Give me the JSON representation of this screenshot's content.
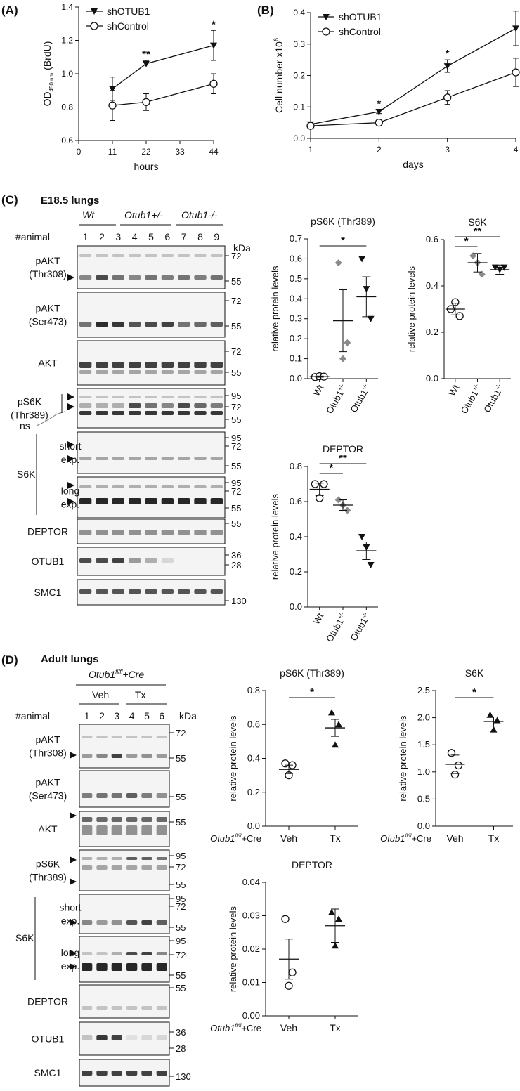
{
  "figure": {
    "panel_labels": [
      "(A)",
      "(B)",
      "(C)",
      "(D)"
    ],
    "C": {
      "title": "E18.5 lungs",
      "groups": [
        "Wt",
        "Otub1+/-",
        "Otub1-/-"
      ],
      "animal_label": "#animal",
      "animals": [
        "1",
        "2",
        "3",
        "4",
        "5",
        "6",
        "7",
        "8",
        "9"
      ],
      "kda": "kDa",
      "blots": [
        {
          "label": [
            "pAKT",
            "(Thr308)"
          ],
          "markers": [
            "72",
            "55"
          ]
        },
        {
          "label": [
            "pAKT",
            "(Ser473)"
          ],
          "markers": [
            "72",
            "55"
          ]
        },
        {
          "label": [
            "AKT"
          ],
          "markers": [
            "72",
            "55"
          ]
        },
        {
          "label": [
            "pS6K",
            "(Thr389)"
          ],
          "markers": [
            "95",
            "72",
            "55"
          ],
          "extra": "ns"
        },
        {
          "label": [
            "short",
            "exp."
          ],
          "markers": [
            "95",
            "72",
            "55"
          ]
        },
        {
          "label": [
            "long",
            "exp."
          ],
          "markers": [
            "95",
            "72",
            "55"
          ]
        },
        {
          "label": [
            "DEPTOR"
          ],
          "markers": [
            "55"
          ]
        },
        {
          "label": [
            "OTUB1"
          ],
          "markers": [
            "36",
            "28"
          ]
        },
        {
          "label": [
            "SMC1"
          ],
          "markers": [
            "130"
          ]
        }
      ],
      "s6k_label": "S6K"
    },
    "D": {
      "title": "Adult lungs",
      "genotype": "Otub1fl/fl+Cre",
      "groups": [
        "Veh",
        "Tx"
      ],
      "animal_label": "#animal",
      "animals": [
        "1",
        "2",
        "3",
        "4",
        "5",
        "6"
      ],
      "kda": "kDa",
      "blots": [
        {
          "label": [
            "pAKT",
            "(Thr308)"
          ],
          "markers": [
            "72",
            "55"
          ]
        },
        {
          "label": [
            "pAKT",
            "(Ser473)"
          ],
          "markers": [
            "55"
          ]
        },
        {
          "label": [
            "AKT"
          ],
          "markers": [
            "55"
          ]
        },
        {
          "label": [
            "pS6K",
            "(Thr389)"
          ],
          "markers": [
            "95",
            "72",
            "55"
          ]
        },
        {
          "label": [
            "short",
            "exp."
          ],
          "markers": [
            "95",
            "72",
            "55"
          ]
        },
        {
          "label": [
            "long",
            "exp."
          ],
          "markers": [
            "95",
            "72",
            "55"
          ]
        },
        {
          "label": [
            "DEPTOR"
          ],
          "markers": [
            "55"
          ]
        },
        {
          "label": [
            "OTUB1"
          ],
          "markers": [
            "36",
            "28"
          ]
        },
        {
          "label": [
            "SMC1"
          ],
          "markers": [
            "130"
          ]
        }
      ],
      "s6k_label": "S6K"
    }
  },
  "chart_data": [
    {
      "id": "A",
      "type": "line",
      "xlabel": "hours",
      "ylabel": "OD450nm (BrdU)",
      "xlim": [
        0,
        44
      ],
      "ylim": [
        0.6,
        1.4
      ],
      "xticks": [
        "0",
        "11",
        "22",
        "33",
        "44"
      ],
      "yticks": [
        "0.6",
        "0.8",
        "1.0",
        "1.2",
        "1.4"
      ],
      "x": [
        11,
        22,
        44
      ],
      "series": [
        {
          "name": "shOTUB1",
          "marker": "triangle-down-filled",
          "values": [
            0.91,
            1.06,
            1.17
          ],
          "errors": [
            0.07,
            0.02,
            0.09
          ]
        },
        {
          "name": "shControl",
          "marker": "circle-open",
          "values": [
            0.81,
            0.83,
            0.94
          ],
          "errors": [
            0.09,
            0.05,
            0.06
          ]
        }
      ],
      "annotations": [
        {
          "x": 22,
          "text": "**"
        },
        {
          "x": 44,
          "text": "*"
        }
      ],
      "legend": "top-left"
    },
    {
      "id": "B",
      "type": "line",
      "xlabel": "days",
      "ylabel": "Cell number x10^6",
      "xlim": [
        1,
        4
      ],
      "ylim": [
        0,
        0.4
      ],
      "xticks": [
        "1",
        "2",
        "3",
        "4"
      ],
      "yticks": [
        "0.0",
        "0.1",
        "0.2",
        "0.3",
        "0.4"
      ],
      "x": [
        1,
        2,
        3,
        4
      ],
      "series": [
        {
          "name": "shOTUB1",
          "marker": "triangle-down-filled",
          "values": [
            0.045,
            0.085,
            0.23,
            0.35
          ],
          "errors": [
            0.005,
            0.006,
            0.02,
            0.055
          ]
        },
        {
          "name": "shControl",
          "marker": "circle-open",
          "values": [
            0.04,
            0.05,
            0.13,
            0.21
          ],
          "errors": [
            0.004,
            0.008,
            0.022,
            0.045
          ]
        }
      ],
      "annotations": [
        {
          "x": 2,
          "text": "*"
        },
        {
          "x": 3,
          "text": "*"
        }
      ],
      "legend": "top-left"
    },
    {
      "id": "C-pS6K",
      "type": "scatter",
      "title": "pS6K (Thr389)",
      "ylabel": "relative protein levels",
      "ylim": [
        0,
        0.7
      ],
      "yticks": [
        "0.0",
        "0.1",
        "0.2",
        "0.3",
        "0.4",
        "0.5",
        "0.6",
        "0.7"
      ],
      "categories": [
        "Wt",
        "Otub1+/-",
        "Otub1-/-"
      ],
      "markers": [
        "circle-open",
        "diamond-gray",
        "triangle-down-filled"
      ],
      "points": [
        [
          0.008,
          0.012,
          0.01
        ],
        [
          0.58,
          0.1,
          0.18
        ],
        [
          0.6,
          0.45,
          0.3
        ]
      ],
      "means": [
        0.01,
        0.29,
        0.41
      ],
      "errors": [
        0.003,
        0.155,
        0.1
      ],
      "annotations": [
        {
          "from": 0,
          "to": 2,
          "text": "*"
        }
      ]
    },
    {
      "id": "C-S6K",
      "type": "scatter",
      "title": "S6K",
      "ylabel": "relative protein levels",
      "ylim": [
        0,
        0.6
      ],
      "yticks": [
        "0.0",
        "0.2",
        "0.4",
        "0.6"
      ],
      "categories": [
        "Wt",
        "Otub1+/-",
        "Otub1-/-"
      ],
      "markers": [
        "circle-open",
        "diamond-gray",
        "triangle-down-filled"
      ],
      "points": [
        [
          0.3,
          0.33,
          0.27
        ],
        [
          0.53,
          0.5,
          0.45
        ],
        [
          0.48,
          0.47,
          0.48
        ]
      ],
      "means": [
        0.3,
        0.5,
        0.47
      ],
      "errors": [
        0.025,
        0.04,
        0.02
      ],
      "annotations": [
        {
          "from": 0,
          "to": 1,
          "text": "*"
        },
        {
          "from": 0,
          "to": 2,
          "text": "**"
        }
      ]
    },
    {
      "id": "C-DEPTOR",
      "type": "scatter",
      "title": "DEPTOR",
      "ylabel": "relative protein levels",
      "ylim": [
        0,
        0.8
      ],
      "yticks": [
        "0.0",
        "0.2",
        "0.4",
        "0.6",
        "0.8"
      ],
      "categories": [
        "Wt",
        "Otub1+/-",
        "Otub1-/-"
      ],
      "markers": [
        "circle-open",
        "diamond-gray",
        "triangle-down-filled"
      ],
      "points": [
        [
          0.7,
          0.62,
          0.7
        ],
        [
          0.61,
          0.58,
          0.55
        ],
        [
          0.4,
          0.34,
          0.24
        ]
      ],
      "means": [
        0.67,
        0.58,
        0.32
      ],
      "errors": [
        0.035,
        0.03,
        0.05
      ],
      "annotations": [
        {
          "from": 0,
          "to": 1,
          "text": "*"
        },
        {
          "from": 0,
          "to": 2,
          "text": "**"
        }
      ]
    },
    {
      "id": "D-pS6K",
      "type": "scatter",
      "title": "pS6K (Thr389)",
      "ylabel": "relative protein levels",
      "ylim": [
        0,
        0.8
      ],
      "yticks": [
        "0.0",
        "0.2",
        "0.4",
        "0.6",
        "0.8"
      ],
      "xprefix": "Otub1fl/fl+Cre",
      "categories": [
        "Veh",
        "Tx"
      ],
      "markers": [
        "circle-open",
        "triangle-up-filled"
      ],
      "points": [
        [
          0.37,
          0.36,
          0.3
        ],
        [
          0.67,
          0.6,
          0.48
        ]
      ],
      "means": [
        0.335,
        0.58
      ],
      "errors": [
        0.025,
        0.05
      ],
      "annotations": [
        {
          "from": 0,
          "to": 1,
          "text": "*"
        }
      ]
    },
    {
      "id": "D-S6K",
      "type": "scatter",
      "title": "S6K",
      "ylabel": "relative protein levels",
      "ylim": [
        0,
        2.5
      ],
      "yticks": [
        "0.0",
        "0.5",
        "1.0",
        "1.5",
        "2.0",
        "2.5"
      ],
      "xprefix": "Otub1fl/fl+Cre",
      "categories": [
        "Veh",
        "Tx"
      ],
      "markers": [
        "circle-open",
        "triangle-up-filled"
      ],
      "points": [
        [
          1.35,
          1.12,
          0.95
        ],
        [
          2.05,
          1.95,
          1.78
        ]
      ],
      "means": [
        1.14,
        1.93
      ],
      "errors": [
        0.17,
        0.085
      ],
      "annotations": [
        {
          "from": 0,
          "to": 1,
          "text": "*"
        }
      ]
    },
    {
      "id": "D-DEPTOR",
      "type": "scatter",
      "title": "DEPTOR",
      "ylabel": "relative protein levels",
      "ylim": [
        0,
        0.04
      ],
      "yticks": [
        "0.00",
        "0.01",
        "0.02",
        "0.03",
        "0.04"
      ],
      "xprefix": "Otub1fl/fl+Cre",
      "categories": [
        "Veh",
        "Tx"
      ],
      "markers": [
        "circle-open",
        "triangle-up-filled"
      ],
      "points": [
        [
          0.029,
          0.013,
          0.009
        ],
        [
          0.031,
          0.029,
          0.021
        ]
      ],
      "means": [
        0.017,
        0.027
      ],
      "errors": [
        0.006,
        0.005
      ]
    }
  ]
}
